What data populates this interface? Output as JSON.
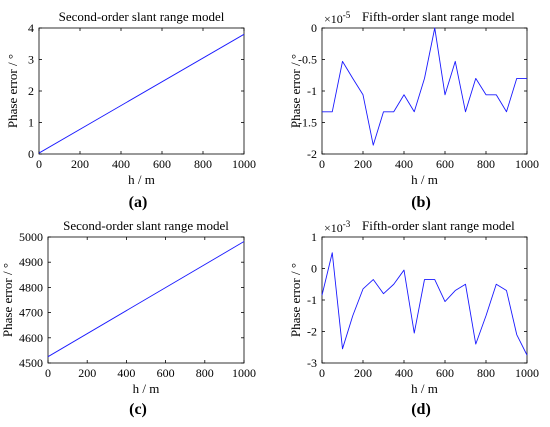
{
  "chart_data": [
    {
      "type": "line",
      "title": "Second-order slant range model",
      "panel_label": "(a)",
      "xlabel": "h / m",
      "ylabel": "Phase error / °",
      "exponent": "",
      "xlim": [
        0,
        1000
      ],
      "ylim": [
        0,
        4
      ],
      "xticks": [
        0,
        200,
        400,
        600,
        800,
        1000
      ],
      "yticks": [
        0,
        1,
        2,
        3,
        4
      ],
      "ytick_labels": [
        "0",
        "1",
        "2",
        "3",
        "4"
      ],
      "grid": false,
      "series": [
        {
          "x": [
            0,
            1000
          ],
          "y": [
            0.03,
            3.8
          ]
        }
      ]
    },
    {
      "type": "line",
      "title": "Fifth-order slant range model",
      "panel_label": "(b)",
      "xlabel": "h / m",
      "ylabel": "Phase error / °",
      "exponent": "-5",
      "xlim": [
        0,
        1000
      ],
      "ylim": [
        -2,
        0
      ],
      "xticks": [
        0,
        200,
        400,
        600,
        800,
        1000
      ],
      "yticks": [
        -2,
        -1.5,
        -1,
        -0.5,
        0
      ],
      "ytick_labels": [
        "-2",
        "-1.5",
        "-1",
        "-0.5",
        "0"
      ],
      "grid": false,
      "series": [
        {
          "x": [
            0,
            50,
            100,
            150,
            200,
            250,
            300,
            350,
            400,
            450,
            500,
            550,
            600,
            650,
            700,
            750,
            800,
            850,
            900,
            950,
            1000
          ],
          "y": [
            -1.33,
            -1.33,
            -0.53,
            -0.8,
            -1.06,
            -1.86,
            -1.33,
            -1.33,
            -1.06,
            -1.33,
            -0.8,
            0,
            -1.06,
            -0.53,
            -1.33,
            -0.8,
            -1.06,
            -1.06,
            -1.33,
            -0.8,
            -0.8
          ]
        }
      ]
    },
    {
      "type": "line",
      "title": "Second-order slant range model",
      "panel_label": "(c)",
      "xlabel": "h / m",
      "ylabel": "Phase error / °",
      "exponent": "",
      "xlim": [
        0,
        1000
      ],
      "ylim": [
        4500,
        5000
      ],
      "xticks": [
        0,
        200,
        400,
        600,
        800,
        1000
      ],
      "yticks": [
        4500,
        4600,
        4700,
        4800,
        4900,
        5000
      ],
      "ytick_labels": [
        "4500",
        "4600",
        "4700",
        "4800",
        "4900",
        "5000"
      ],
      "grid": false,
      "series": [
        {
          "x": [
            0,
            1000
          ],
          "y": [
            4525,
            4982
          ]
        }
      ]
    },
    {
      "type": "line",
      "title": "Fifth-order slant range model",
      "panel_label": "(d)",
      "xlabel": "h / m",
      "ylabel": "Phase error / °",
      "exponent": "-3",
      "xlim": [
        0,
        1000
      ],
      "ylim": [
        -3,
        1
      ],
      "xticks": [
        0,
        200,
        400,
        600,
        800,
        1000
      ],
      "yticks": [
        -3,
        -2,
        -1,
        0,
        1
      ],
      "ytick_labels": [
        "-3",
        "-2",
        "-1",
        "0",
        "1"
      ],
      "grid": false,
      "series": [
        {
          "x": [
            0,
            50,
            100,
            150,
            200,
            250,
            300,
            350,
            400,
            450,
            500,
            550,
            600,
            650,
            700,
            750,
            800,
            850,
            900,
            950,
            1000
          ],
          "y": [
            -0.85,
            0.5,
            -2.55,
            -1.5,
            -0.65,
            -0.35,
            -0.8,
            -0.5,
            -0.05,
            -2.05,
            -0.35,
            -0.35,
            -1.05,
            -0.7,
            -0.5,
            -2.4,
            -1.5,
            -0.5,
            -0.7,
            -2.1,
            -2.75
          ]
        }
      ]
    }
  ]
}
